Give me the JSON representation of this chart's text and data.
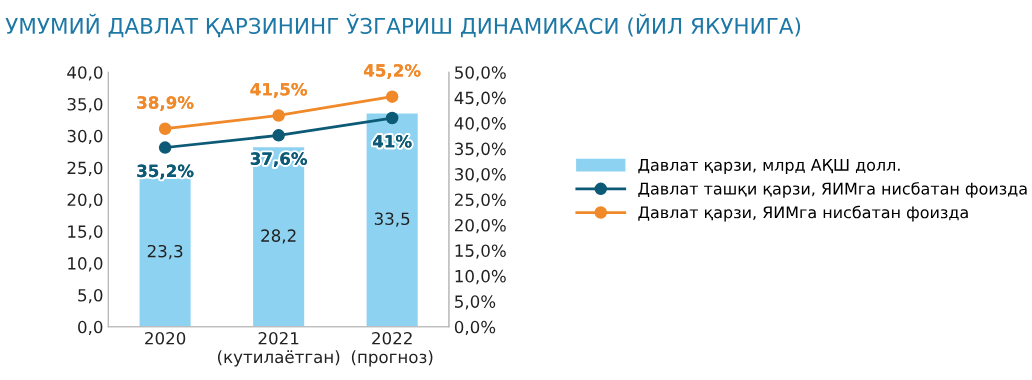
{
  "chart_data": {
    "type": "bar",
    "title": "УМУМИЙ ДАВЛАТ ҚАРЗИНИНГ ЎЗГАРИШ ДИНАМИКАСИ (ЙИЛ ЯКУНИГА)",
    "categories": [
      "2020",
      "2021\n(кутилаётган)",
      "2022\n(прогноз)"
    ],
    "series": [
      {
        "name": "Давлат қарзи, млрд АҚШ долл.",
        "color": "#8dd3f1",
        "values": [
          23.3,
          28.2,
          33.5
        ],
        "value_labels": [
          "23,3",
          "28,2",
          "33,5"
        ]
      },
      {
        "name": "Давлат ташқи қарзи, ЯИМга нисбатан фоизда",
        "type": "line",
        "axis": "y2",
        "color": "#0d5a77",
        "values": [
          35.2,
          37.6,
          41
        ],
        "value_labels": [
          "35,2%",
          "37,6%",
          "41%"
        ]
      },
      {
        "name": "Давлат қарзи, ЯИМга нисбатан фоизда",
        "type": "line",
        "axis": "y2",
        "color": "#f0892a",
        "values": [
          38.9,
          41.5,
          45.2
        ],
        "value_labels": [
          "38,9%",
          "41,5%",
          "45,2%"
        ]
      }
    ],
    "ylim": [
      0,
      40
    ],
    "yticks": [
      {
        "value": 0,
        "label": "0,0"
      },
      {
        "value": 5,
        "label": "5,0"
      },
      {
        "value": 10,
        "label": "10,0"
      },
      {
        "value": 15,
        "label": "15,0"
      },
      {
        "value": 20,
        "label": "20,0"
      },
      {
        "value": 25,
        "label": "25,0"
      },
      {
        "value": 30,
        "label": "30,0"
      },
      {
        "value": 35,
        "label": "35,0"
      },
      {
        "value": 40,
        "label": "40,0"
      }
    ],
    "y2lim": [
      0,
      50
    ],
    "y2ticks": [
      {
        "value": 0,
        "label": "0,0%"
      },
      {
        "value": 5,
        "label": "5,0%"
      },
      {
        "value": 10,
        "label": "10,0%"
      },
      {
        "value": 15,
        "label": "15,0%"
      },
      {
        "value": 20,
        "label": "20,0%"
      },
      {
        "value": 25,
        "label": "25,0%"
      },
      {
        "value": 30,
        "label": "30,0%"
      },
      {
        "value": 35,
        "label": "35,0%"
      },
      {
        "value": 40,
        "label": "40,0%"
      },
      {
        "value": 45,
        "label": "45,0%"
      },
      {
        "value": 50,
        "label": "50,0%"
      }
    ],
    "marker": "circle",
    "line_style": "solid",
    "grid": false,
    "legend": "right"
  }
}
